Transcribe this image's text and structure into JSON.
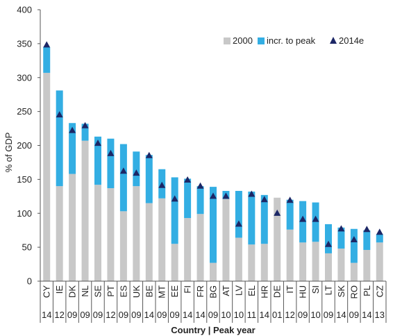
{
  "chart_data": {
    "type": "bar",
    "title": "",
    "xlabel": "Country | Peak year",
    "ylabel": "% of GDP",
    "ylim": [
      0,
      400
    ],
    "yticks": [
      0,
      50,
      100,
      150,
      200,
      250,
      300,
      350,
      400
    ],
    "grid": false,
    "legend_position": "top-right",
    "colors": {
      "2000": "#c8c8c8",
      "incr_to_peak": "#33aee3",
      "2014e": "#1c2766",
      "axis": "#555555"
    },
    "categories": [
      "CY",
      "IE",
      "DK",
      "NL",
      "SE",
      "PT",
      "ES",
      "UK",
      "BE",
      "MT",
      "EE",
      "FI",
      "FR",
      "BG",
      "AT",
      "LV",
      "EL",
      "HR",
      "DE",
      "IT",
      "HU",
      "SI",
      "LT",
      "SK",
      "RO",
      "PL",
      "CZ"
    ],
    "peak_years": [
      "14",
      "12",
      "09",
      "09",
      "09",
      "12",
      "09",
      "09",
      "14",
      "09",
      "09",
      "14",
      "14",
      "09",
      "10",
      "10",
      "11",
      "14",
      "01",
      "12",
      "09",
      "10",
      "09",
      "14",
      "09",
      "14",
      "13"
    ],
    "series": [
      {
        "name": "2000",
        "type": "stacked-bar",
        "values": [
          307,
          140,
          158,
          207,
          142,
          137,
          103,
          140,
          115,
          122,
          55,
          93,
          99,
          27,
          121,
          64,
          54,
          55,
          123,
          76,
          57,
          58,
          41,
          48,
          27,
          46,
          57
        ]
      },
      {
        "name": "incr. to peak",
        "type": "stacked-bar",
        "values": [
          38,
          141,
          75,
          25,
          71,
          73,
          99,
          51,
          71,
          43,
          98,
          58,
          41,
          112,
          12,
          69,
          78,
          72,
          0,
          44,
          61,
          58,
          43,
          31,
          50,
          29,
          12
        ]
      },
      {
        "name": "2014e",
        "type": "marker",
        "values": [
          348,
          245,
          222,
          229,
          203,
          188,
          162,
          159,
          185,
          141,
          121,
          149,
          140,
          125,
          125,
          84,
          128,
          120,
          100,
          119,
          91,
          91,
          54,
          77,
          61,
          76,
          72
        ]
      }
    ]
  }
}
